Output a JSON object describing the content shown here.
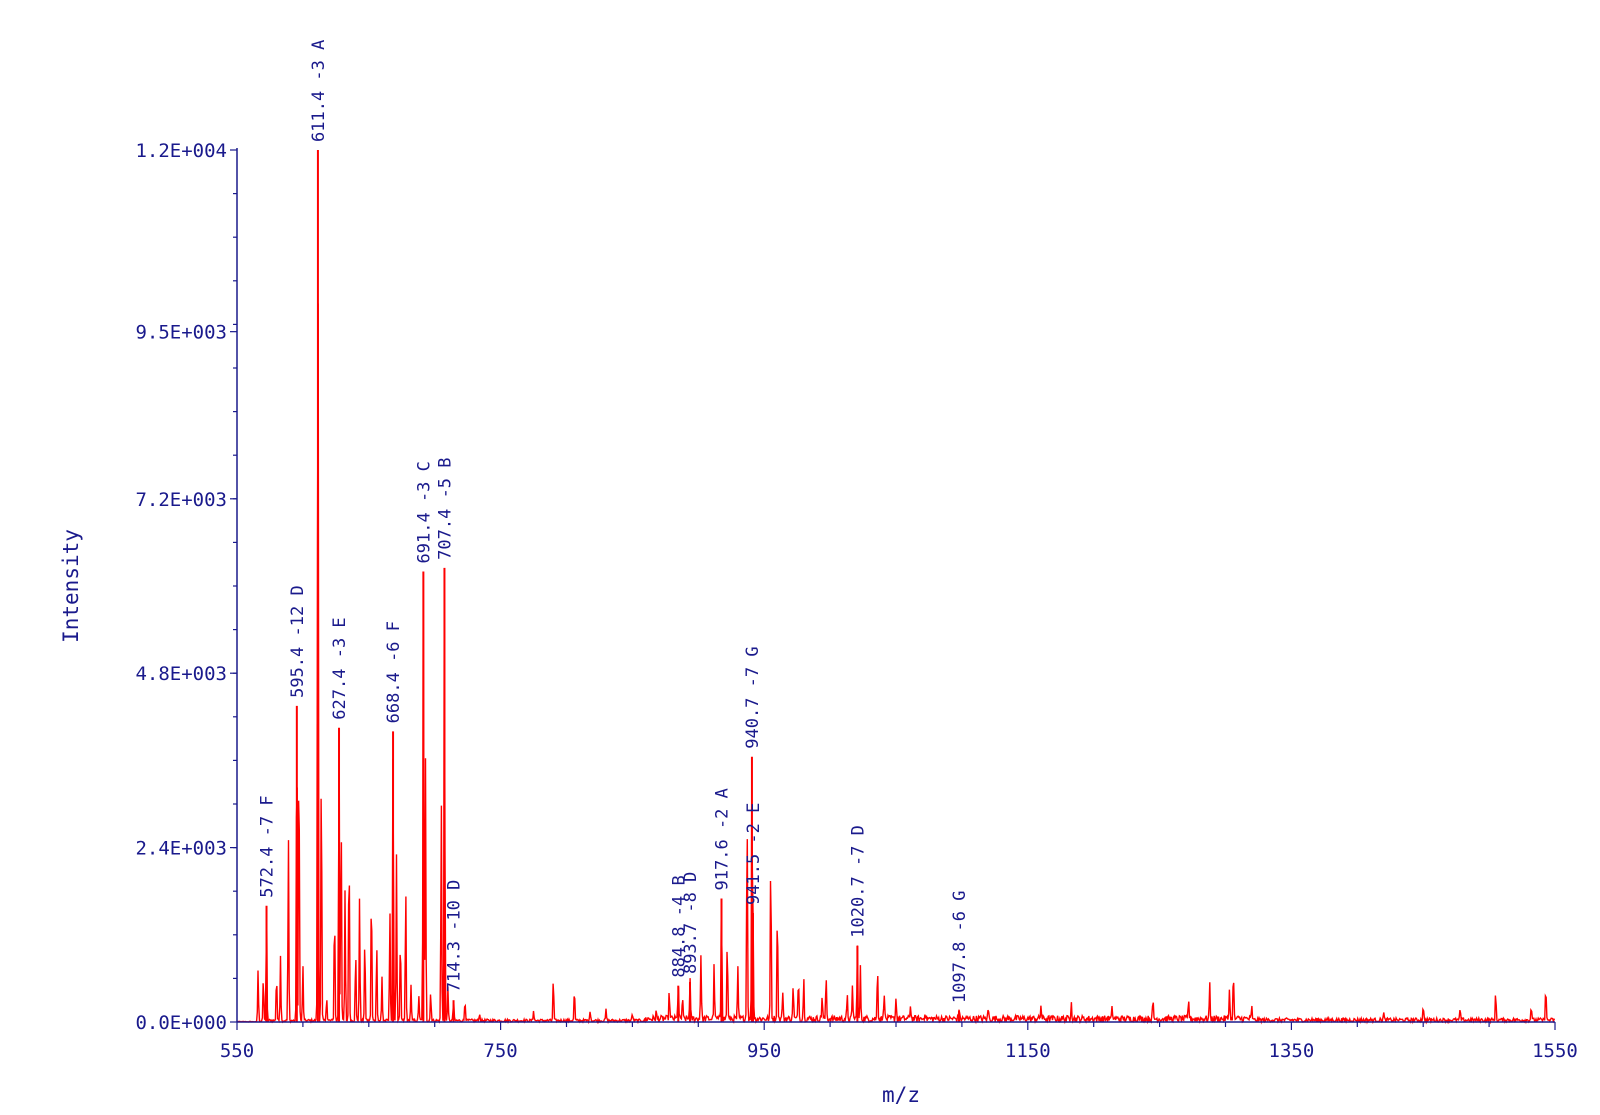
{
  "chart_data": {
    "type": "line",
    "xlabel": "m/z",
    "ylabel": "Intensity",
    "xlim": [
      550,
      1550
    ],
    "ylim": [
      0,
      12000
    ],
    "x_ticks": [
      {
        "value": 550,
        "label": "550"
      },
      {
        "value": 750,
        "label": "750"
      },
      {
        "value": 950,
        "label": "950"
      },
      {
        "value": 1150,
        "label": "1150"
      },
      {
        "value": 1350,
        "label": "1350"
      },
      {
        "value": 1550,
        "label": "1550"
      }
    ],
    "y_ticks": [
      {
        "value": 0,
        "label": "0.0E+000"
      },
      {
        "value": 2400,
        "label": "2.4E+003"
      },
      {
        "value": 4800,
        "label": "4.8E+003"
      },
      {
        "value": 7200,
        "label": "7.2E+003"
      },
      {
        "value": 9500,
        "label": "9.5E+003"
      },
      {
        "value": 12000,
        "label": "1.2E+004"
      }
    ],
    "grid": false,
    "line_color": "#ff0000",
    "text_color": "#1a1a8c",
    "peaks": [
      {
        "mz": 572.4,
        "intensity": 1600,
        "label": "572.4 -7 F"
      },
      {
        "mz": 595.4,
        "intensity": 4350,
        "label": "595.4 -12 D"
      },
      {
        "mz": 611.4,
        "intensity": 12000,
        "label": "611.4 -3 A"
      },
      {
        "mz": 627.4,
        "intensity": 4050,
        "label": "627.4 -3 E"
      },
      {
        "mz": 668.4,
        "intensity": 4000,
        "label": "668.4 -6 F"
      },
      {
        "mz": 691.4,
        "intensity": 6200,
        "label": "691.4 -3 C"
      },
      {
        "mz": 707.4,
        "intensity": 6250,
        "label": "707.4 -5 B"
      },
      {
        "mz": 714.3,
        "intensity": 300,
        "label": "714.3 -10 D"
      },
      {
        "mz": 884.8,
        "intensity": 500,
        "label": "884.8 -4 B"
      },
      {
        "mz": 893.7,
        "intensity": 550,
        "label": "893.7 -8 D"
      },
      {
        "mz": 917.6,
        "intensity": 1700,
        "label": "917.6 -2 A"
      },
      {
        "mz": 940.7,
        "intensity": 3650,
        "label": "940.7 -7 G"
      },
      {
        "mz": 941.5,
        "intensity": 1500,
        "label": "941.5 -2 E"
      },
      {
        "mz": 1020.7,
        "intensity": 1050,
        "label": "1020.7 -7 D"
      },
      {
        "mz": 1097.8,
        "intensity": 150,
        "label": "1097.8 -6 G"
      }
    ],
    "minor_peaks": [
      [
        566,
        700
      ],
      [
        570,
        600
      ],
      [
        580,
        650
      ],
      [
        583,
        900
      ],
      [
        589,
        2500
      ],
      [
        597,
        4100
      ],
      [
        600,
        750
      ],
      [
        614,
        3700
      ],
      [
        618,
        350
      ],
      [
        624,
        1600
      ],
      [
        629,
        3000
      ],
      [
        632,
        1800
      ],
      [
        635,
        2500
      ],
      [
        640,
        1000
      ],
      [
        643,
        1700
      ],
      [
        647,
        1200
      ],
      [
        652,
        1900
      ],
      [
        656,
        1100
      ],
      [
        660,
        600
      ],
      [
        666,
        1500
      ],
      [
        671,
        2300
      ],
      [
        674,
        1200
      ],
      [
        678,
        1900
      ],
      [
        682,
        500
      ],
      [
        688,
        350
      ],
      [
        693,
        3600
      ],
      [
        697,
        400
      ],
      [
        705,
        3100
      ],
      [
        710,
        450
      ],
      [
        723,
        300
      ],
      [
        734,
        100
      ],
      [
        775,
        150
      ],
      [
        790,
        600
      ],
      [
        806,
        450
      ],
      [
        818,
        150
      ],
      [
        830,
        150
      ],
      [
        850,
        100
      ],
      [
        868,
        100
      ],
      [
        878,
        380
      ],
      [
        888,
        300
      ],
      [
        902,
        900
      ],
      [
        912,
        750
      ],
      [
        922,
        1100
      ],
      [
        930,
        700
      ],
      [
        937,
        3000
      ],
      [
        955,
        2300
      ],
      [
        960,
        1600
      ],
      [
        964,
        380
      ],
      [
        972,
        500
      ],
      [
        976,
        600
      ],
      [
        980,
        550
      ],
      [
        994,
        350
      ],
      [
        997,
        600
      ],
      [
        1013,
        300
      ],
      [
        1017,
        450
      ],
      [
        1023,
        700
      ],
      [
        1036,
        750
      ],
      [
        1041,
        400
      ],
      [
        1050,
        300
      ],
      [
        1061,
        200
      ],
      [
        1072,
        100
      ],
      [
        1120,
        150
      ],
      [
        1160,
        200
      ],
      [
        1183,
        270
      ],
      [
        1214,
        150
      ],
      [
        1245,
        250
      ],
      [
        1272,
        280
      ],
      [
        1288,
        480
      ],
      [
        1303,
        450
      ],
      [
        1306,
        650
      ],
      [
        1320,
        150
      ],
      [
        1420,
        100
      ],
      [
        1450,
        200
      ],
      [
        1478,
        150
      ],
      [
        1505,
        380
      ],
      [
        1532,
        200
      ],
      [
        1543,
        480
      ]
    ]
  }
}
